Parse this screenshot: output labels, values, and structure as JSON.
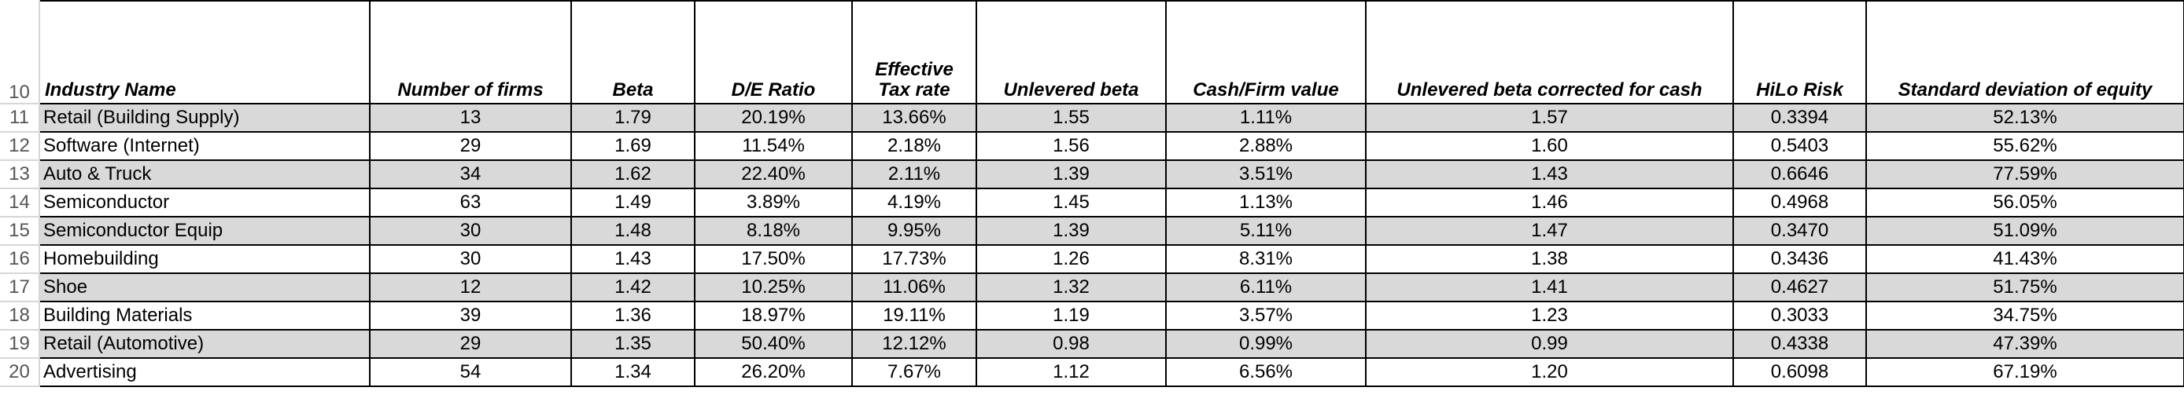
{
  "sheet": {
    "header_row_number": "10",
    "columns": [
      "Industry Name",
      "Number of firms",
      "Beta",
      "D/E Ratio",
      "Effective Tax rate",
      "Unlevered beta",
      "Cash/Firm value",
      "Unlevered beta corrected for cash",
      "HiLo Risk",
      "Standard deviation of equity"
    ],
    "rows": [
      {
        "num": "11",
        "shaded": true,
        "cells": [
          "Retail (Building Supply)",
          "13",
          "1.79",
          "20.19%",
          "13.66%",
          "1.55",
          "1.11%",
          "1.57",
          "0.3394",
          "52.13%"
        ]
      },
      {
        "num": "12",
        "shaded": false,
        "cells": [
          "Software (Internet)",
          "29",
          "1.69",
          "11.54%",
          "2.18%",
          "1.56",
          "2.88%",
          "1.60",
          "0.5403",
          "55.62%"
        ]
      },
      {
        "num": "13",
        "shaded": true,
        "cells": [
          "Auto & Truck",
          "34",
          "1.62",
          "22.40%",
          "2.11%",
          "1.39",
          "3.51%",
          "1.43",
          "0.6646",
          "77.59%"
        ]
      },
      {
        "num": "14",
        "shaded": false,
        "cells": [
          "Semiconductor",
          "63",
          "1.49",
          "3.89%",
          "4.19%",
          "1.45",
          "1.13%",
          "1.46",
          "0.4968",
          "56.05%"
        ]
      },
      {
        "num": "15",
        "shaded": true,
        "cells": [
          "Semiconductor Equip",
          "30",
          "1.48",
          "8.18%",
          "9.95%",
          "1.39",
          "5.11%",
          "1.47",
          "0.3470",
          "51.09%"
        ]
      },
      {
        "num": "16",
        "shaded": false,
        "cells": [
          "Homebuilding",
          "30",
          "1.43",
          "17.50%",
          "17.73%",
          "1.26",
          "8.31%",
          "1.38",
          "0.3436",
          "41.43%"
        ]
      },
      {
        "num": "17",
        "shaded": true,
        "cells": [
          "Shoe",
          "12",
          "1.42",
          "10.25%",
          "11.06%",
          "1.32",
          "6.11%",
          "1.41",
          "0.4627",
          "51.75%"
        ]
      },
      {
        "num": "18",
        "shaded": false,
        "cells": [
          "Building Materials",
          "39",
          "1.36",
          "18.97%",
          "19.11%",
          "1.19",
          "3.57%",
          "1.23",
          "0.3033",
          "34.75%"
        ]
      },
      {
        "num": "19",
        "shaded": true,
        "cells": [
          "Retail (Automotive)",
          "29",
          "1.35",
          "50.40%",
          "12.12%",
          "0.98",
          "0.99%",
          "0.99",
          "0.4338",
          "47.39%"
        ]
      },
      {
        "num": "20",
        "shaded": false,
        "cells": [
          "Advertising",
          "54",
          "1.34",
          "26.20%",
          "7.67%",
          "1.12",
          "6.56%",
          "1.20",
          "0.6098",
          "67.19%"
        ]
      }
    ]
  }
}
